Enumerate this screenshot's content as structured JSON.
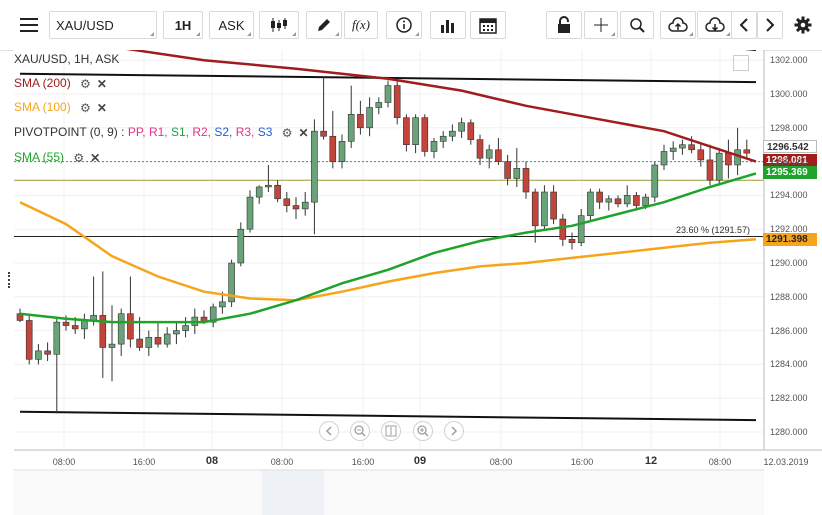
{
  "toolbar": {
    "symbol": "XAU/USD",
    "timeframe": "1H",
    "price_type": "ASK"
  },
  "legend": {
    "title": "XAU/USD, 1H, ASK",
    "sma200": "SMA (200)",
    "sma100": "SMA (100)",
    "pivot_name": "PIVOTPOINT (0, 9)",
    "pivot_sep": " : ",
    "pivot_levels": [
      "PP,",
      "R1,",
      "S1,",
      "R2,",
      "S2,",
      "R3,",
      "S3"
    ],
    "pivot_colors": [
      "#e0338a",
      "#e0338a",
      "#1fa344",
      "#e0338a",
      "#1f5fd1",
      "#e0338a",
      "#1f5fd1"
    ],
    "sma55": "SMA (55)"
  },
  "colors": {
    "sma200": "#a11c1c",
    "sma100": "#f6a51b",
    "sma55": "#1fa32a",
    "bull": "#69a37a",
    "bear": "#c2443b"
  },
  "price_labels": {
    "last": "1296.542",
    "sma200": "1296.081",
    "sma55": "1295.369",
    "sma100": "1291.398",
    "fib": "23.60 % (1291.57)"
  },
  "y_axis": [
    "1302.000",
    "1300.000",
    "1298.000",
    "1296.000",
    "1294.000",
    "1292.000",
    "1290.000",
    "1288.000",
    "1286.000",
    "1284.000",
    "1282.000",
    "1280.000"
  ],
  "x_axis": [
    "08:00",
    "16:00",
    "08",
    "08:00",
    "16:00",
    "09",
    "08:00",
    "16:00",
    "12",
    "08:00",
    "12.03.2019"
  ],
  "chart_data": {
    "type": "candlestick",
    "symbol": "XAU/USD",
    "timeframe": "1H",
    "ylim": [
      1279.5,
      1303
    ],
    "y_ticks": [
      1302,
      1300,
      1298,
      1296,
      1294,
      1292,
      1290,
      1288,
      1286,
      1284,
      1282,
      1280
    ],
    "candles": [
      [
        1287.0,
        1287.3,
        1286.5,
        1286.6
      ],
      [
        1286.6,
        1287.0,
        1284.0,
        1284.3
      ],
      [
        1284.3,
        1285.2,
        1284.0,
        1284.8
      ],
      [
        1284.8,
        1285.3,
        1284.2,
        1284.6
      ],
      [
        1284.6,
        1286.8,
        1281.1,
        1286.5
      ],
      [
        1286.5,
        1286.9,
        1286.0,
        1286.3
      ],
      [
        1286.3,
        1286.8,
        1285.8,
        1286.1
      ],
      [
        1286.1,
        1287.0,
        1285.5,
        1286.6
      ],
      [
        1286.6,
        1289.2,
        1286.3,
        1286.9
      ],
      [
        1286.9,
        1289.5,
        1283.2,
        1285.0
      ],
      [
        1285.0,
        1287.5,
        1283.0,
        1285.2
      ],
      [
        1285.2,
        1287.3,
        1284.5,
        1287.0
      ],
      [
        1287.0,
        1289.2,
        1285.0,
        1285.5
      ],
      [
        1285.5,
        1286.8,
        1284.8,
        1285.0
      ],
      [
        1285.0,
        1286.0,
        1284.5,
        1285.6
      ],
      [
        1285.6,
        1286.5,
        1285.0,
        1285.2
      ],
      [
        1285.2,
        1286.2,
        1285.0,
        1285.8
      ],
      [
        1285.8,
        1286.5,
        1285.2,
        1286.0
      ],
      [
        1286.0,
        1286.8,
        1285.6,
        1286.3
      ],
      [
        1286.3,
        1287.3,
        1285.8,
        1286.8
      ],
      [
        1286.8,
        1287.2,
        1286.4,
        1286.5
      ],
      [
        1286.5,
        1287.6,
        1286.2,
        1287.4
      ],
      [
        1287.4,
        1288.3,
        1287.0,
        1287.7
      ],
      [
        1287.7,
        1290.2,
        1287.4,
        1290.0
      ],
      [
        1290.0,
        1292.4,
        1289.8,
        1292.0
      ],
      [
        1292.0,
        1294.3,
        1291.8,
        1293.9
      ],
      [
        1293.9,
        1294.6,
        1293.5,
        1294.5
      ],
      [
        1294.5,
        1295.8,
        1294.2,
        1294.6
      ],
      [
        1294.6,
        1294.9,
        1293.6,
        1293.8
      ],
      [
        1293.8,
        1294.2,
        1293.0,
        1293.4
      ],
      [
        1293.4,
        1293.9,
        1292.6,
        1293.2
      ],
      [
        1293.2,
        1294.2,
        1292.8,
        1293.6
      ],
      [
        1293.6,
        1298.5,
        1291.7,
        1297.8
      ],
      [
        1297.8,
        1301.0,
        1297.3,
        1297.5
      ],
      [
        1297.5,
        1299.0,
        1295.6,
        1296.0
      ],
      [
        1296.0,
        1297.6,
        1295.6,
        1297.2
      ],
      [
        1297.2,
        1300.5,
        1296.8,
        1298.8
      ],
      [
        1298.8,
        1299.6,
        1297.6,
        1298.0
      ],
      [
        1298.0,
        1299.8,
        1297.5,
        1299.2
      ],
      [
        1299.2,
        1299.8,
        1298.8,
        1299.5
      ],
      [
        1299.5,
        1300.8,
        1299.2,
        1300.5
      ],
      [
        1300.5,
        1300.9,
        1298.2,
        1298.6
      ],
      [
        1298.6,
        1298.8,
        1296.6,
        1297.0
      ],
      [
        1297.0,
        1298.8,
        1296.5,
        1298.6
      ],
      [
        1298.6,
        1298.8,
        1296.3,
        1296.6
      ],
      [
        1296.6,
        1297.4,
        1296.2,
        1297.2
      ],
      [
        1297.2,
        1297.8,
        1296.8,
        1297.5
      ],
      [
        1297.5,
        1298.2,
        1297.2,
        1297.8
      ],
      [
        1297.8,
        1298.6,
        1297.4,
        1298.3
      ],
      [
        1298.3,
        1298.5,
        1297.0,
        1297.3
      ],
      [
        1297.3,
        1297.6,
        1295.8,
        1296.2
      ],
      [
        1296.2,
        1297.0,
        1295.6,
        1296.7
      ],
      [
        1296.7,
        1297.4,
        1295.8,
        1296.0
      ],
      [
        1296.0,
        1296.4,
        1294.6,
        1295.0
      ],
      [
        1295.0,
        1296.8,
        1294.5,
        1295.6
      ],
      [
        1295.6,
        1296.0,
        1293.8,
        1294.2
      ],
      [
        1294.2,
        1294.4,
        1291.2,
        1292.2
      ],
      [
        1292.2,
        1294.6,
        1292.0,
        1294.2
      ],
      [
        1294.2,
        1294.6,
        1292.3,
        1292.6
      ],
      [
        1292.6,
        1292.9,
        1291.0,
        1291.4
      ],
      [
        1291.4,
        1291.8,
        1290.8,
        1291.2
      ],
      [
        1291.2,
        1293.2,
        1291.0,
        1292.8
      ],
      [
        1292.8,
        1294.4,
        1292.5,
        1294.2
      ],
      [
        1294.2,
        1294.4,
        1293.2,
        1293.6
      ],
      [
        1293.6,
        1294.0,
        1293.1,
        1293.8
      ],
      [
        1293.8,
        1294.0,
        1293.3,
        1293.5
      ],
      [
        1293.5,
        1294.6,
        1293.3,
        1294.0
      ],
      [
        1294.0,
        1294.2,
        1293.1,
        1293.4
      ],
      [
        1293.4,
        1294.1,
        1293.2,
        1293.9
      ],
      [
        1293.9,
        1296.0,
        1293.6,
        1295.8
      ],
      [
        1295.8,
        1297.0,
        1295.5,
        1296.6
      ],
      [
        1296.6,
        1297.2,
        1296.1,
        1296.8
      ],
      [
        1296.8,
        1297.3,
        1296.4,
        1297.0
      ],
      [
        1297.0,
        1297.5,
        1296.5,
        1296.7
      ],
      [
        1296.7,
        1297.0,
        1295.7,
        1296.1
      ],
      [
        1296.1,
        1297.0,
        1294.6,
        1294.9
      ],
      [
        1294.9,
        1296.8,
        1294.7,
        1296.5
      ],
      [
        1296.5,
        1297.3,
        1295.0,
        1295.8
      ],
      [
        1295.8,
        1298.0,
        1295.2,
        1296.7
      ],
      [
        1296.7,
        1297.3,
        1296.2,
        1296.5
      ]
    ],
    "sma_200": [
      [
        0,
        1303.8
      ],
      [
        10,
        1302.8
      ],
      [
        20,
        1302.0
      ],
      [
        30,
        1301.5
      ],
      [
        40,
        1300.9
      ],
      [
        48,
        1300.2
      ],
      [
        55,
        1299.3
      ],
      [
        62,
        1298.6
      ],
      [
        70,
        1297.8
      ],
      [
        80,
        1296.0
      ]
    ],
    "sma_100": [
      [
        0,
        1293.6
      ],
      [
        5,
        1292.3
      ],
      [
        10,
        1290.4
      ],
      [
        15,
        1289.2
      ],
      [
        20,
        1288.3
      ],
      [
        25,
        1287.9
      ],
      [
        30,
        1287.8
      ],
      [
        35,
        1288.3
      ],
      [
        40,
        1288.9
      ],
      [
        45,
        1289.4
      ],
      [
        50,
        1289.8
      ],
      [
        55,
        1290.0
      ],
      [
        60,
        1290.3
      ],
      [
        65,
        1290.6
      ],
      [
        70,
        1290.9
      ],
      [
        75,
        1291.2
      ],
      [
        80,
        1291.4
      ]
    ],
    "sma_55": [
      [
        0,
        1287.0
      ],
      [
        5,
        1286.7
      ],
      [
        10,
        1286.5
      ],
      [
        15,
        1286.5
      ],
      [
        20,
        1286.5
      ],
      [
        25,
        1287.0
      ],
      [
        30,
        1287.8
      ],
      [
        35,
        1288.8
      ],
      [
        40,
        1289.6
      ],
      [
        45,
        1290.6
      ],
      [
        50,
        1291.3
      ],
      [
        55,
        1291.8
      ],
      [
        60,
        1292.2
      ],
      [
        65,
        1292.9
      ],
      [
        70,
        1293.6
      ],
      [
        75,
        1294.5
      ],
      [
        80,
        1295.3
      ]
    ],
    "trendlines": [
      {
        "from": [
          0,
          1301.2
        ],
        "to": [
          80,
          1300.7
        ]
      },
      {
        "from": [
          0,
          1281.2
        ],
        "to": [
          80,
          1280.7
        ]
      },
      {
        "from": [
          70,
          1303.1
        ],
        "to": [
          80,
          1302.6
        ]
      }
    ],
    "fib_level": {
      "label": "23.60 %",
      "value": 1291.57
    },
    "pivot_dotted": 1296.0,
    "olive_level": 1294.9
  }
}
